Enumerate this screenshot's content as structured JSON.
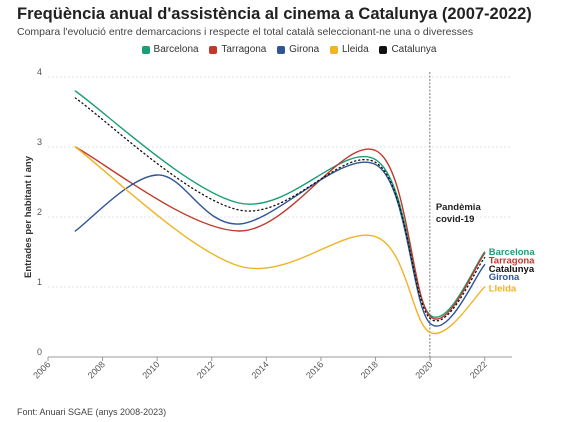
{
  "title": "Freqüència anual d'assistència al cinema a Catalunya (2007-2022)",
  "subtitle": "Compara l'evolució entre demarcacions i respecte el total català seleccionant-ne una o diveresses",
  "source": "Font: Anuari SGAE (anys 2008-2023)",
  "legend": [
    {
      "label": "Barcelona",
      "color": "#1b9e77"
    },
    {
      "label": "Tarragona",
      "color": "#c0392b"
    },
    {
      "label": "Girona",
      "color": "#2f5597"
    },
    {
      "label": "Lleida",
      "color": "#f0b323"
    },
    {
      "label": "Catalunya",
      "color": "#111111"
    }
  ],
  "annotation": {
    "line1": "Pandèmia",
    "line2": "covid-19"
  },
  "chart_data": {
    "type": "line",
    "title": "Freqüència anual d'assistència al cinema a Catalunya (2007-2022)",
    "ylabel": "Entrades per habitant i any",
    "xlabel": "",
    "xlim": [
      2006,
      2023
    ],
    "ylim": [
      0,
      4
    ],
    "x_ticks": [
      "2006",
      "2008",
      "2010",
      "2012",
      "2014",
      "2016",
      "2018",
      "2020",
      "2022"
    ],
    "y_ticks": [
      "0",
      "1",
      "2",
      "3",
      "4"
    ],
    "event_line": {
      "x": 2019.99
    },
    "series": [
      {
        "name": "Barcelona",
        "color": "#1b9e77",
        "dash": "solid",
        "x": [
          2007,
          2013,
          2018,
          2020,
          2022
        ],
        "y": [
          3.8,
          2.2,
          2.82,
          0.6,
          1.5
        ]
      },
      {
        "name": "Tarragona",
        "color": "#c0392b",
        "dash": "solid",
        "x": [
          2007,
          2013,
          2018,
          2020,
          2022
        ],
        "y": [
          3.0,
          1.8,
          2.95,
          0.58,
          1.48
        ]
      },
      {
        "name": "Girona",
        "color": "#2f5597",
        "dash": "solid",
        "x": [
          2007,
          2010,
          2013,
          2018,
          2020,
          2022
        ],
        "y": [
          1.8,
          2.6,
          1.9,
          2.75,
          0.48,
          1.32
        ]
      },
      {
        "name": "Lleida",
        "color": "#f0b323",
        "dash": "solid",
        "x": [
          2007,
          2013,
          2018,
          2020,
          2022
        ],
        "y": [
          3.0,
          1.3,
          1.72,
          0.35,
          1.0
        ]
      },
      {
        "name": "Catalunya",
        "color": "#111111",
        "dash": "dotted",
        "x": [
          2007,
          2013,
          2018,
          2020,
          2022
        ],
        "y": [
          3.7,
          2.1,
          2.78,
          0.55,
          1.42
        ]
      }
    ],
    "end_labels": [
      {
        "name": "Barcelona",
        "text": "Barcelona",
        "color": "#1b9e77",
        "y": 1.5
      },
      {
        "name": "Tarragona",
        "text": "Tarragona",
        "color": "#c0392b",
        "y": 1.38
      },
      {
        "name": "Catalunya",
        "text": "Catalunya",
        "color": "#111111",
        "y": 1.26
      },
      {
        "name": "Girona",
        "text": "Girona",
        "color": "#2f5597",
        "y": 1.14
      },
      {
        "name": "Lleida",
        "text": "Lleida",
        "color": "#f0b323",
        "y": 0.98
      }
    ]
  }
}
